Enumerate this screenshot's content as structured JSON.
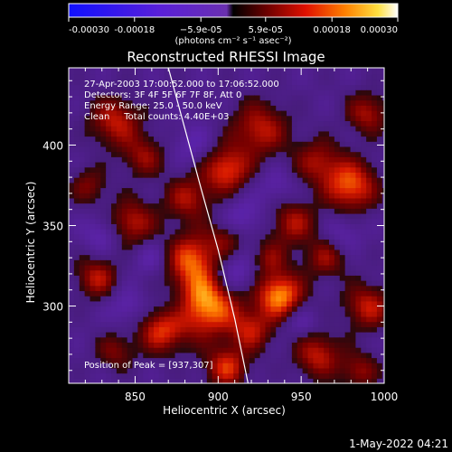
{
  "chart_data": {
    "type": "heatmap",
    "title": "Reconstructed RHESSI Image",
    "xlabel": "Heliocentric X (arcsec)",
    "ylabel": "Heliocentric Y (arcsec)",
    "xlim": [
      810,
      1000
    ],
    "ylim": [
      252,
      448
    ],
    "x_ticks": [
      850,
      900,
      950,
      1000
    ],
    "y_ticks": [
      300,
      350,
      400
    ],
    "colorbar": {
      "range": [
        -0.0003,
        0.0003
      ],
      "tick_values": [
        -0.0003,
        -0.00018,
        -5.9e-05,
        5.9e-05,
        0.00018,
        0.0003
      ],
      "tick_labels": [
        "-0.00030",
        "-0.00018",
        "−5.9e-05",
        "5.9e-05",
        "0.00018",
        "0.00030"
      ],
      "unit_label": "(photons cm⁻² s⁻¹ asec⁻²)"
    },
    "annotations": [
      "27-Apr-2003 17:00:52.000 to 17:06:52.000",
      "Detectors: 3F 4F 5F 6F 7F 8F, Att 0",
      "Energy Range: 25.0 - 50.0 keV",
      "Clean     Total counts: 4.40E+03"
    ],
    "peak_label": "Position of Peak = [937,307]",
    "peak_position": [
      937,
      307
    ],
    "limb_curve": {
      "x": [
        870,
        880,
        890,
        900,
        910,
        918
      ],
      "y": [
        448,
        410,
        372,
        335,
        292,
        252
      ]
    },
    "blobs": [
      {
        "x": 893,
        "y": 302,
        "r": 14,
        "v": 0.0003
      },
      {
        "x": 884,
        "y": 330,
        "r": 11,
        "v": 0.00022
      },
      {
        "x": 866,
        "y": 285,
        "r": 10,
        "v": 0.0002
      },
      {
        "x": 848,
        "y": 352,
        "r": 10,
        "v": 0.00018
      },
      {
        "x": 827,
        "y": 318,
        "r": 9,
        "v": 0.00017
      },
      {
        "x": 838,
        "y": 415,
        "r": 11,
        "v": 0.00018
      },
      {
        "x": 855,
        "y": 393,
        "r": 9,
        "v": 0.00014
      },
      {
        "x": 882,
        "y": 367,
        "r": 10,
        "v": 0.00016
      },
      {
        "x": 905,
        "y": 385,
        "r": 10,
        "v": 0.00022
      },
      {
        "x": 925,
        "y": 410,
        "r": 12,
        "v": 0.00018
      },
      {
        "x": 960,
        "y": 390,
        "r": 10,
        "v": 0.00015
      },
      {
        "x": 980,
        "y": 375,
        "r": 11,
        "v": 0.00024
      },
      {
        "x": 990,
        "y": 420,
        "r": 9,
        "v": 0.00016
      },
      {
        "x": 945,
        "y": 352,
        "r": 10,
        "v": 0.00016
      },
      {
        "x": 965,
        "y": 330,
        "r": 9,
        "v": 0.00014
      },
      {
        "x": 937,
        "y": 307,
        "r": 10,
        "v": 0.00028
      },
      {
        "x": 920,
        "y": 285,
        "r": 9,
        "v": 0.00016
      },
      {
        "x": 960,
        "y": 270,
        "r": 10,
        "v": 0.00018
      },
      {
        "x": 990,
        "y": 300,
        "r": 10,
        "v": 0.00018
      },
      {
        "x": 985,
        "y": 260,
        "r": 8,
        "v": 0.00014
      },
      {
        "x": 905,
        "y": 262,
        "r": 9,
        "v": 0.0002
      },
      {
        "x": 838,
        "y": 272,
        "r": 8,
        "v": 0.00012
      },
      {
        "x": 822,
        "y": 375,
        "r": 8,
        "v": 0.00012
      },
      {
        "x": 905,
        "y": 342,
        "r": 8,
        "v": 0.00012
      },
      {
        "x": 930,
        "y": 330,
        "r": 8,
        "v": 0.00012
      },
      {
        "x": 874,
        "y": 300,
        "r": 8,
        "v": -8e-05
      },
      {
        "x": 885,
        "y": 400,
        "r": 9,
        "v": -8e-05
      },
      {
        "x": 915,
        "y": 355,
        "r": 9,
        "v": -0.0001
      },
      {
        "x": 910,
        "y": 320,
        "r": 10,
        "v": -0.00014
      },
      {
        "x": 845,
        "y": 300,
        "r": 8,
        "v": -9e-05
      },
      {
        "x": 830,
        "y": 345,
        "r": 8,
        "v": -0.0001
      },
      {
        "x": 950,
        "y": 290,
        "r": 7,
        "v": -8e-05
      },
      {
        "x": 975,
        "y": 345,
        "r": 8,
        "v": -8e-05
      },
      {
        "x": 935,
        "y": 375,
        "r": 8,
        "v": -8e-05
      },
      {
        "x": 860,
        "y": 330,
        "r": 8,
        "v": -8e-05
      }
    ]
  },
  "footer": {
    "datetime": "1-May-2022 04:21"
  }
}
